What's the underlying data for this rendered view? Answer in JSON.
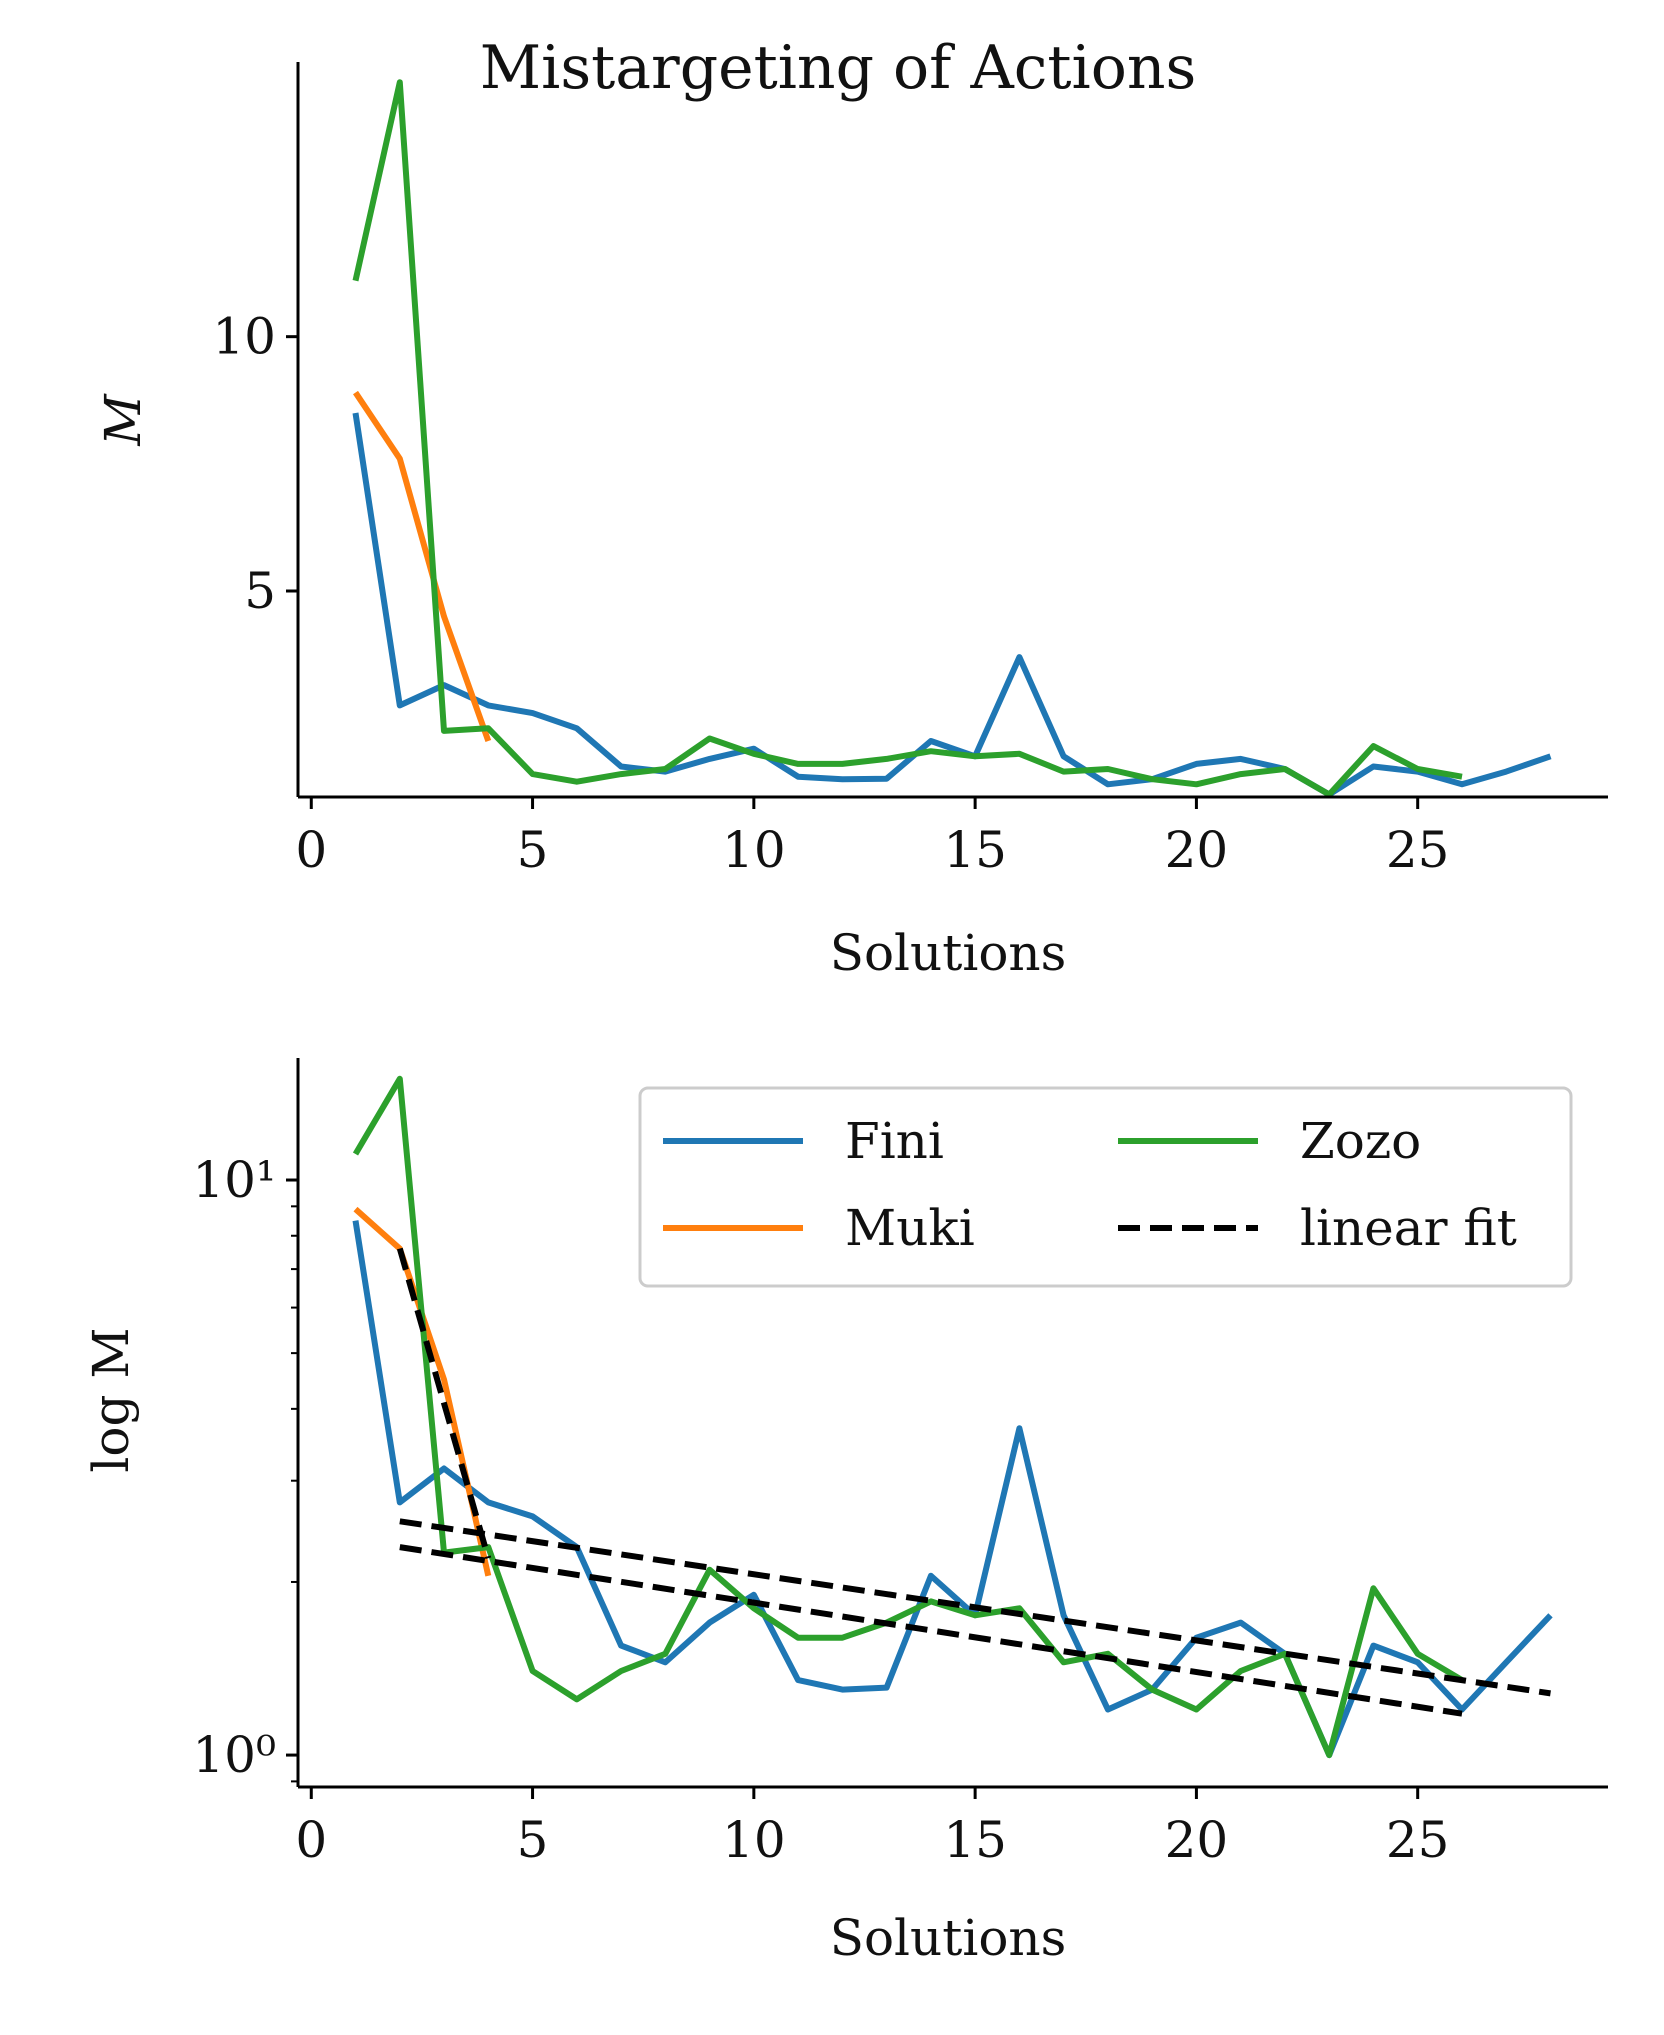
{
  "figure": {
    "title": "Mistargeting of Actions"
  },
  "chart_data": [
    {
      "type": "line",
      "title": "Mistargeting of Actions",
      "xlabel": "Solutions",
      "ylabel": "M",
      "yscale": "linear",
      "xlim": [
        -0.3,
        29.3
      ],
      "ylim": [
        0.95,
        15.4
      ],
      "xticks": [
        0,
        5,
        10,
        15,
        20,
        25
      ],
      "xtick_labels": [
        "0",
        "5",
        "10",
        "15",
        "20",
        "25"
      ],
      "yticks": [
        5,
        10
      ],
      "ytick_labels": [
        "5",
        "10"
      ],
      "grid": false,
      "series": [
        {
          "name": "Fini",
          "color": "#1f77b4",
          "x": [
            1,
            2,
            3,
            4,
            5,
            6,
            7,
            8,
            9,
            10,
            11,
            12,
            13,
            14,
            15,
            16,
            17,
            18,
            19,
            20,
            21,
            22,
            23,
            24,
            25,
            26,
            27,
            28
          ],
          "y": [
            8.5,
            2.75,
            3.15,
            2.75,
            2.6,
            2.3,
            1.55,
            1.45,
            1.7,
            1.9,
            1.35,
            1.3,
            1.31,
            2.05,
            1.75,
            3.7,
            1.75,
            1.2,
            1.3,
            1.6,
            1.7,
            1.5,
            1.0,
            1.55,
            1.45,
            1.2,
            1.45,
            1.75
          ]
        },
        {
          "name": "Muki",
          "color": "#ff7f0e",
          "x": [
            1,
            2,
            3,
            4
          ],
          "y": [
            8.9,
            7.6,
            4.5,
            2.05
          ]
        },
        {
          "name": "Zozo",
          "color": "#2ca02c",
          "x": [
            1,
            2,
            3,
            4,
            5,
            6,
            7,
            8,
            9,
            10,
            11,
            12,
            13,
            14,
            15,
            16,
            17,
            18,
            19,
            20,
            21,
            22,
            23,
            24,
            25,
            26
          ],
          "y": [
            11.1,
            15.0,
            2.25,
            2.3,
            1.4,
            1.25,
            1.4,
            1.5,
            2.1,
            1.8,
            1.6,
            1.6,
            1.7,
            1.85,
            1.75,
            1.8,
            1.45,
            1.5,
            1.3,
            1.2,
            1.4,
            1.5,
            1.0,
            1.95,
            1.5,
            1.35
          ]
        }
      ]
    },
    {
      "type": "line",
      "xlabel": "Solutions",
      "ylabel": "log M",
      "yscale": "log",
      "xlim": [
        -0.3,
        29.3
      ],
      "ylim": [
        0.88,
        16.3
      ],
      "xticks": [
        0,
        5,
        10,
        15,
        20,
        25
      ],
      "xtick_labels": [
        "0",
        "5",
        "10",
        "15",
        "20",
        "25"
      ],
      "yticks": [
        1,
        10
      ],
      "ytick_labels": [
        "10⁰",
        "10¹"
      ],
      "minor_yticks": [
        2,
        3,
        4,
        5,
        6,
        7,
        8,
        9
      ],
      "grid": false,
      "legend": {
        "placement": "top-right",
        "columns": 2
      },
      "series": [
        {
          "name": "Fini",
          "color": "#1f77b4",
          "style": "solid",
          "x": [
            1,
            2,
            3,
            4,
            5,
            6,
            7,
            8,
            9,
            10,
            11,
            12,
            13,
            14,
            15,
            16,
            17,
            18,
            19,
            20,
            21,
            22,
            23,
            24,
            25,
            26,
            27,
            28
          ],
          "y": [
            8.5,
            2.75,
            3.15,
            2.75,
            2.6,
            2.3,
            1.55,
            1.45,
            1.7,
            1.9,
            1.35,
            1.3,
            1.31,
            2.05,
            1.75,
            3.7,
            1.75,
            1.2,
            1.3,
            1.6,
            1.7,
            1.5,
            1.0,
            1.55,
            1.45,
            1.2,
            1.45,
            1.75
          ]
        },
        {
          "name": "Muki",
          "color": "#ff7f0e",
          "style": "solid",
          "x": [
            1,
            2,
            3,
            4
          ],
          "y": [
            8.9,
            7.6,
            4.5,
            2.05
          ]
        },
        {
          "name": "Zozo",
          "color": "#2ca02c",
          "style": "solid",
          "x": [
            1,
            2,
            3,
            4,
            5,
            6,
            7,
            8,
            9,
            10,
            11,
            12,
            13,
            14,
            15,
            16,
            17,
            18,
            19,
            20,
            21,
            22,
            23,
            24,
            25,
            26
          ],
          "y": [
            11.1,
            15.0,
            2.25,
            2.3,
            1.4,
            1.25,
            1.4,
            1.5,
            2.1,
            1.8,
            1.6,
            1.6,
            1.7,
            1.85,
            1.75,
            1.8,
            1.45,
            1.5,
            1.3,
            1.2,
            1.4,
            1.5,
            1.0,
            1.95,
            1.5,
            1.35
          ]
        },
        {
          "name": "linear fit",
          "color": "#000000",
          "style": "dashed",
          "fits": [
            {
              "x": [
                2,
                4
              ],
              "y": [
                7.6,
                2.2
              ]
            },
            {
              "x": [
                2,
                28
              ],
              "y": [
                2.55,
                1.28
              ]
            },
            {
              "x": [
                2,
                26
              ],
              "y": [
                2.3,
                1.18
              ]
            }
          ]
        }
      ]
    }
  ]
}
